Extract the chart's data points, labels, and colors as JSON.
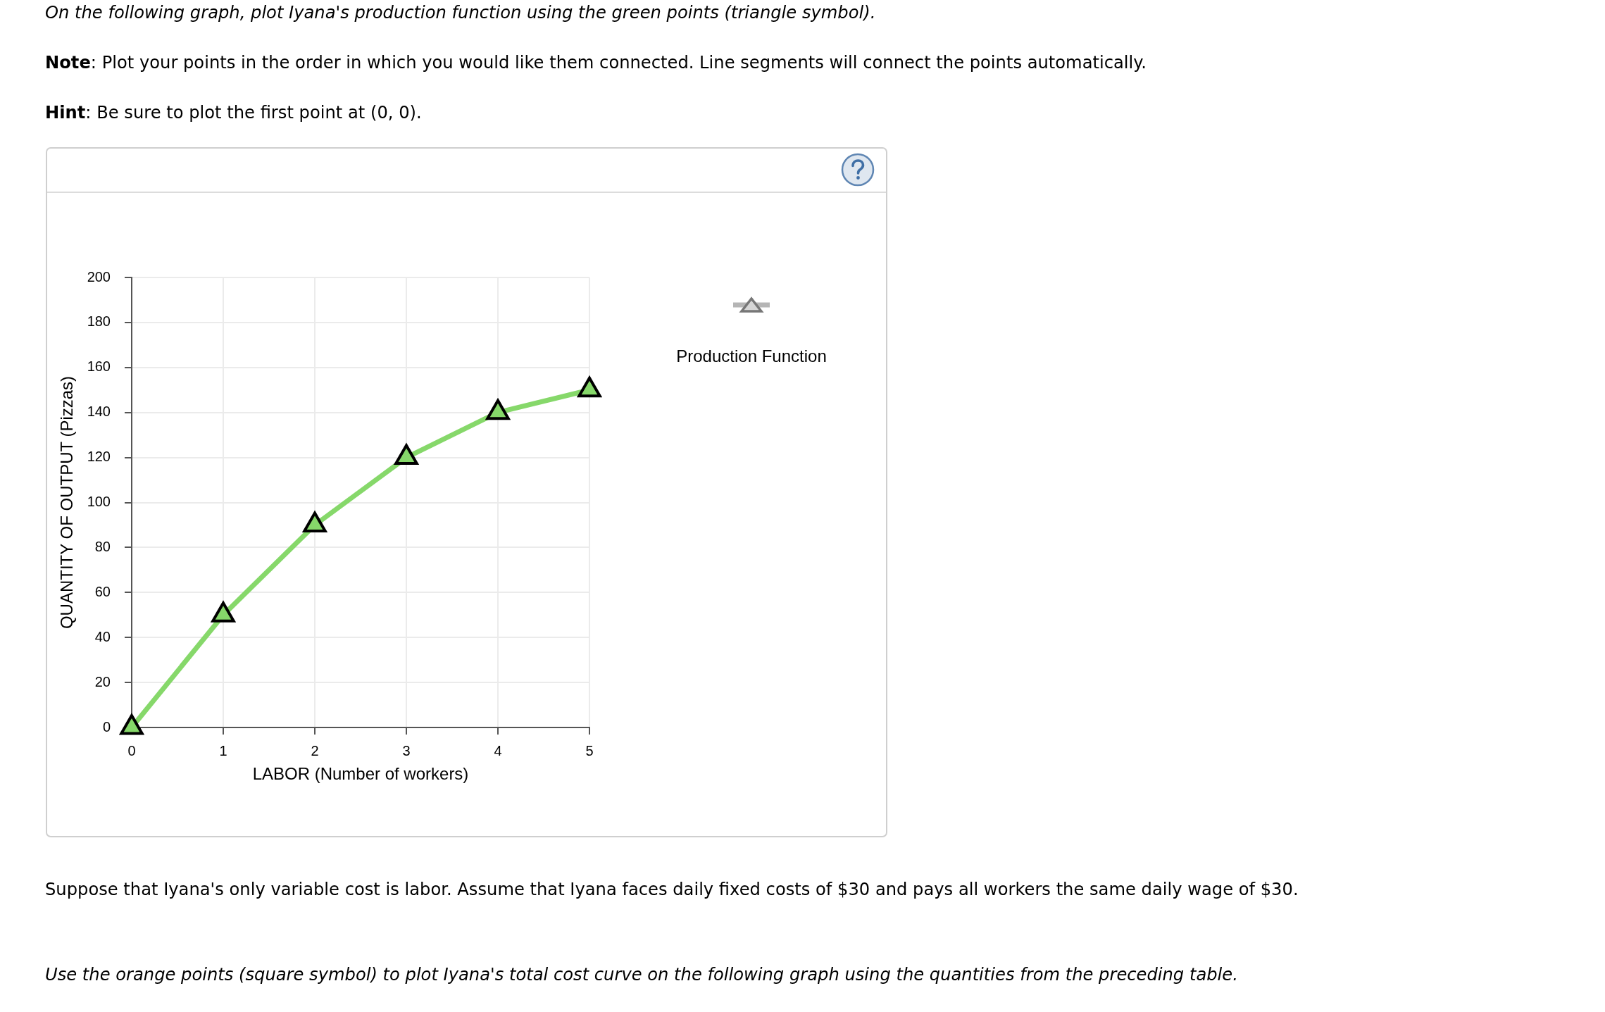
{
  "chart_data": {
    "type": "line",
    "title": "On the following graph, plot Iyana's production function using the green points (triangle symbol).",
    "annotations": [
      "Note: Plot your points in the order in which you would like them connected. Line segments will connect the points automatically.",
      "Hint: Be sure to plot the first point at (0, 0).",
      "Suppose that Iyana's only variable cost is labor. Assume that Iyana faces daily fixed costs of $30 and pays all workers the same daily wage of $30.",
      "Use the orange points (square symbol) to plot Iyana's total cost curve on the following graph using the quantities from the preceding table."
    ],
    "xlabel": "LABOR (Number of workers)",
    "ylabel": "QUANTITY OF OUTPUT (Pizzas)",
    "x": [
      0,
      1,
      2,
      3,
      4,
      5
    ],
    "series": [
      {
        "name": "Production Function",
        "color": "#86d86a",
        "values": [
          0,
          50,
          90,
          120,
          140,
          150
        ]
      }
    ],
    "xlim": [
      0,
      5
    ],
    "xticks": [
      0,
      1,
      2,
      3,
      4,
      5
    ],
    "ylim": [
      0,
      200
    ],
    "yticks": [
      0,
      20,
      40,
      60,
      80,
      100,
      120,
      140,
      160,
      180,
      200
    ],
    "grid": true,
    "legend": "top right",
    "marker": "triangle",
    "line_style": "solid"
  }
}
